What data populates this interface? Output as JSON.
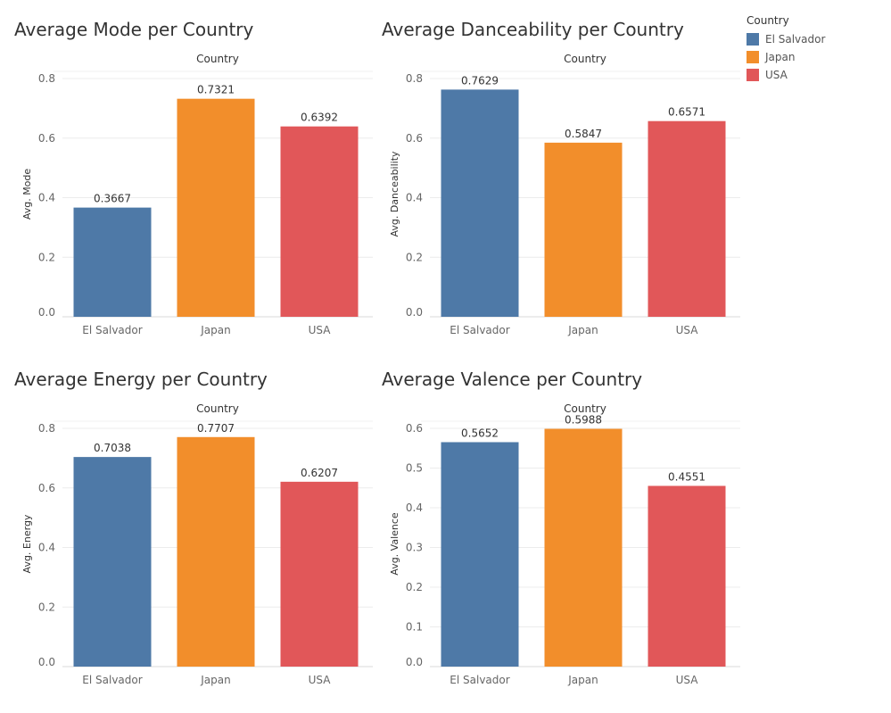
{
  "legend": {
    "title": "Country",
    "items": [
      {
        "label": "El Salvador",
        "color": "#4e79a7"
      },
      {
        "label": "Japan",
        "color": "#f28e2b"
      },
      {
        "label": "USA",
        "color": "#e15759"
      }
    ]
  },
  "chart_data": [
    {
      "type": "bar",
      "title": "Average Mode per Country",
      "header": "Country",
      "ylabel": "Avg. Mode",
      "categories": [
        "El Salvador",
        "Japan",
        "USA"
      ],
      "values": [
        0.3667,
        0.7321,
        0.6392
      ],
      "value_labels": [
        "0.3667",
        "0.7321",
        "0.6392"
      ],
      "yticks": [
        0.0,
        0.2,
        0.4,
        0.6,
        0.8
      ],
      "ytick_labels": [
        "0.0",
        "0.2",
        "0.4",
        "0.6",
        "0.8"
      ],
      "ylim": [
        0,
        0.8
      ],
      "grid": true,
      "colors": [
        "#4e79a7",
        "#f28e2b",
        "#e15759"
      ]
    },
    {
      "type": "bar",
      "title": "Average Danceability per Country",
      "header": "Country",
      "ylabel": "Avg. Danceability",
      "categories": [
        "El Salvador",
        "Japan",
        "USA"
      ],
      "values": [
        0.7629,
        0.5847,
        0.6571
      ],
      "value_labels": [
        "0.7629",
        "0.5847",
        "0.6571"
      ],
      "yticks": [
        0.0,
        0.2,
        0.4,
        0.6,
        0.8
      ],
      "ytick_labels": [
        "0.0",
        "0.2",
        "0.4",
        "0.6",
        "0.8"
      ],
      "ylim": [
        0,
        0.8
      ],
      "grid": true,
      "colors": [
        "#4e79a7",
        "#f28e2b",
        "#e15759"
      ]
    },
    {
      "type": "bar",
      "title": "Average Energy per Country",
      "header": "Country",
      "ylabel": "Avg. Energy",
      "categories": [
        "El Salvador",
        "Japan",
        "USA"
      ],
      "values": [
        0.7038,
        0.7707,
        0.6207
      ],
      "value_labels": [
        "0.7038",
        "0.7707",
        "0.6207"
      ],
      "yticks": [
        0.0,
        0.2,
        0.4,
        0.6,
        0.8
      ],
      "ytick_labels": [
        "0.0",
        "0.2",
        "0.4",
        "0.6",
        "0.8"
      ],
      "ylim": [
        0,
        0.8
      ],
      "grid": true,
      "colors": [
        "#4e79a7",
        "#f28e2b",
        "#e15759"
      ]
    },
    {
      "type": "bar",
      "title": "Average Valence per Country",
      "header": "Country",
      "ylabel": "Avg. Valence",
      "categories": [
        "El Salvador",
        "Japan",
        "USA"
      ],
      "values": [
        0.5652,
        0.5988,
        0.4551
      ],
      "value_labels": [
        "0.5652",
        "0.5988",
        "0.4551"
      ],
      "yticks": [
        0.0,
        0.1,
        0.2,
        0.3,
        0.4,
        0.5,
        0.6
      ],
      "ytick_labels": [
        "0.0",
        "0.1",
        "0.2",
        "0.3",
        "0.4",
        "0.5",
        "0.6"
      ],
      "ylim": [
        0,
        0.6
      ],
      "grid": true,
      "colors": [
        "#4e79a7",
        "#f28e2b",
        "#e15759"
      ]
    }
  ]
}
